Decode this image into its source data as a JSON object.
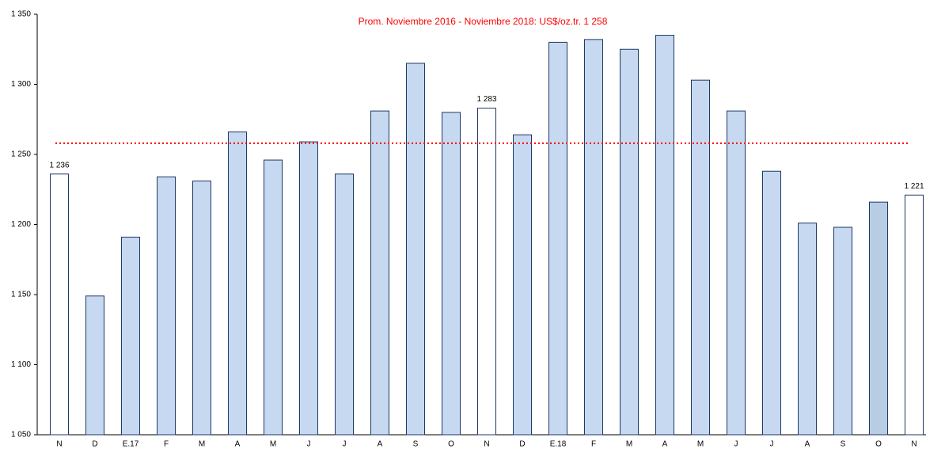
{
  "chart_data": {
    "type": "bar",
    "categories": [
      "N",
      "D",
      "E.17",
      "F",
      "M",
      "A",
      "M",
      "J",
      "J",
      "A",
      "S",
      "O",
      "N",
      "D",
      "E.18",
      "F",
      "M",
      "A",
      "M",
      "J",
      "J",
      "A",
      "S",
      "O",
      "N"
    ],
    "values": [
      1236,
      1149,
      1191,
      1234,
      1231,
      1266,
      1246,
      1259,
      1236,
      1281,
      1315,
      1280,
      1283,
      1264,
      1330,
      1332,
      1325,
      1335,
      1303,
      1281,
      1238,
      1201,
      1198,
      1216,
      1221
    ],
    "value_labels": [
      "1 236",
      null,
      null,
      null,
      null,
      null,
      null,
      null,
      null,
      null,
      null,
      null,
      "1 283",
      null,
      null,
      null,
      null,
      null,
      null,
      null,
      null,
      null,
      null,
      null,
      "1 221"
    ],
    "colors": [
      "#ffffff",
      "#c6d9f1",
      "#c6d9f1",
      "#c6d9f1",
      "#c6d9f1",
      "#c6d9f1",
      "#c6d9f1",
      "#c6d9f1",
      "#c6d9f1",
      "#c6d9f1",
      "#c6d9f1",
      "#c6d9f1",
      "#ffffff",
      "#c6d9f1",
      "#c6d9f1",
      "#c6d9f1",
      "#c6d9f1",
      "#c6d9f1",
      "#c6d9f1",
      "#c6d9f1",
      "#c6d9f1",
      "#c6d9f1",
      "#c6d9f1",
      "#b8cce4",
      "#ffffff"
    ],
    "ylim": [
      1050,
      1350
    ],
    "yticks": [
      {
        "value": 1050,
        "label": "1 050"
      },
      {
        "value": 1100,
        "label": "1 100"
      },
      {
        "value": 1150,
        "label": "1 150"
      },
      {
        "value": 1200,
        "label": "1 200"
      },
      {
        "value": 1250,
        "label": "1 250"
      },
      {
        "value": 1300,
        "label": "1 300"
      },
      {
        "value": 1350,
        "label": "1 350"
      }
    ],
    "reference_line": {
      "value": 1258,
      "label": "Prom. Noviembre 2016 - Noviembre 2018: US$/oz.tr. 1 258",
      "color": "#ff0000"
    }
  }
}
